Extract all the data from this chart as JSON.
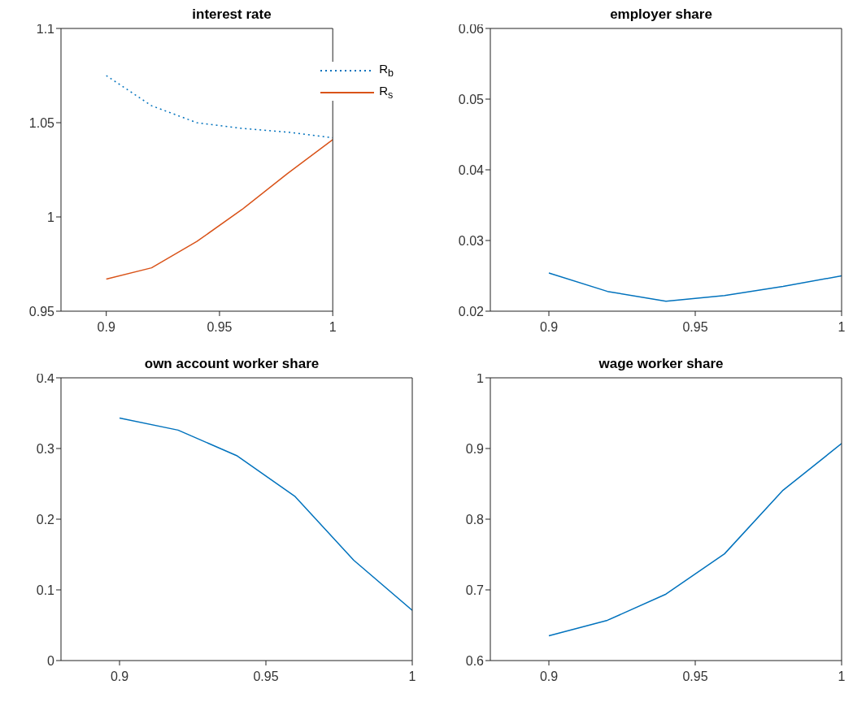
{
  "chart_data": [
    {
      "type": "line",
      "title": "interest rate",
      "x": [
        0.9,
        0.92,
        0.94,
        0.96,
        0.98,
        1
      ],
      "xlim": [
        0.88,
        1
      ],
      "xticks": [
        0.9,
        0.95,
        1
      ],
      "ylim": [
        0.95,
        1.1
      ],
      "yticks": [
        0.95,
        1,
        1.05,
        1.1
      ],
      "grid": false,
      "marker": "none",
      "legend": "top right",
      "series": [
        {
          "name": "R$_{b}$",
          "color": "#0072bd",
          "line_style": "dotted",
          "values": [
            1.075,
            1.059,
            1.05,
            1.047,
            1.045,
            1.042
          ]
        },
        {
          "name": "R$_{s}$",
          "color": "#d95319",
          "line_style": "solid",
          "values": [
            0.967,
            0.973,
            0.987,
            1.004,
            1.023,
            1.041
          ]
        }
      ]
    },
    {
      "type": "line",
      "title": "employer share",
      "x": [
        0.9,
        0.92,
        0.94,
        0.96,
        0.98,
        1
      ],
      "xlim": [
        0.88,
        1
      ],
      "xticks": [
        0.9,
        0.95,
        1
      ],
      "ylim": [
        0.02,
        0.06
      ],
      "yticks": [
        0.02,
        0.03,
        0.04,
        0.05,
        0.06
      ],
      "grid": false,
      "marker": "none",
      "series": [
        {
          "color": "#0072bd",
          "values": [
            0.0254,
            0.0228,
            0.0214,
            0.0222,
            0.0235,
            0.025
          ]
        }
      ]
    },
    {
      "type": "line",
      "title": "own account worker share",
      "x": [
        0.9,
        0.92,
        0.94,
        0.96,
        0.98,
        1
      ],
      "xlim": [
        0.88,
        1
      ],
      "xticks": [
        0.9,
        0.95,
        1
      ],
      "ylim": [
        0,
        0.4
      ],
      "yticks": [
        0,
        0.1,
        0.2,
        0.3,
        0.4
      ],
      "grid": false,
      "marker": "none",
      "series": [
        {
          "color": "#0072bd",
          "values": [
            0.343,
            0.326,
            0.29,
            0.232,
            0.142,
            0.071
          ]
        }
      ]
    },
    {
      "type": "line",
      "title": "wage worker share",
      "x": [
        0.9,
        0.92,
        0.94,
        0.96,
        0.98,
        1
      ],
      "xlim": [
        0.88,
        1
      ],
      "xticks": [
        0.9,
        0.95,
        1
      ],
      "ylim": [
        0.6,
        1
      ],
      "yticks": [
        0.6,
        0.7,
        0.8,
        0.9,
        1
      ],
      "grid": false,
      "marker": "none",
      "series": [
        {
          "color": "#0072bd",
          "values": [
            0.635,
            0.657,
            0.694,
            0.751,
            0.841,
            0.907
          ]
        }
      ]
    }
  ]
}
